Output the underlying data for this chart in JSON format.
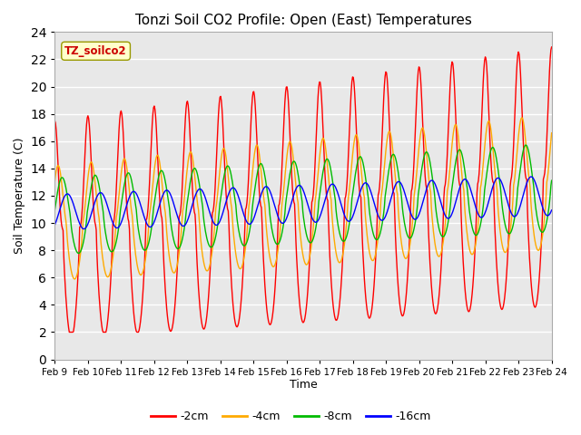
{
  "title": "Tonzi Soil CO2 Profile: Open (East) Temperatures",
  "xlabel": "Time",
  "ylabel": "Soil Temperature (C)",
  "ylim": [
    0,
    24
  ],
  "yticks": [
    0,
    2,
    4,
    6,
    8,
    10,
    12,
    14,
    16,
    18,
    20,
    22,
    24
  ],
  "xtick_labels": [
    "Feb 9",
    "Feb 10",
    "Feb 11",
    "Feb 12",
    "Feb 13",
    "Feb 14",
    "Feb 15",
    "Feb 16",
    "Feb 17",
    "Feb 18",
    "Feb 19",
    "Feb 20",
    "Feb 21",
    "Feb 22",
    "Feb 23",
    "Feb 24"
  ],
  "colors": {
    "-2cm": "#ff0000",
    "-4cm": "#ffaa00",
    "-8cm": "#00bb00",
    "-16cm": "#0000ff"
  },
  "legend_label": "TZ_soilco2",
  "legend_bg": "#ffffcc",
  "legend_text_color": "#cc0000",
  "plot_bg": "#e8e8e8",
  "fig_bg": "#ffffff",
  "n_days": 15,
  "pts_per_day": 48
}
